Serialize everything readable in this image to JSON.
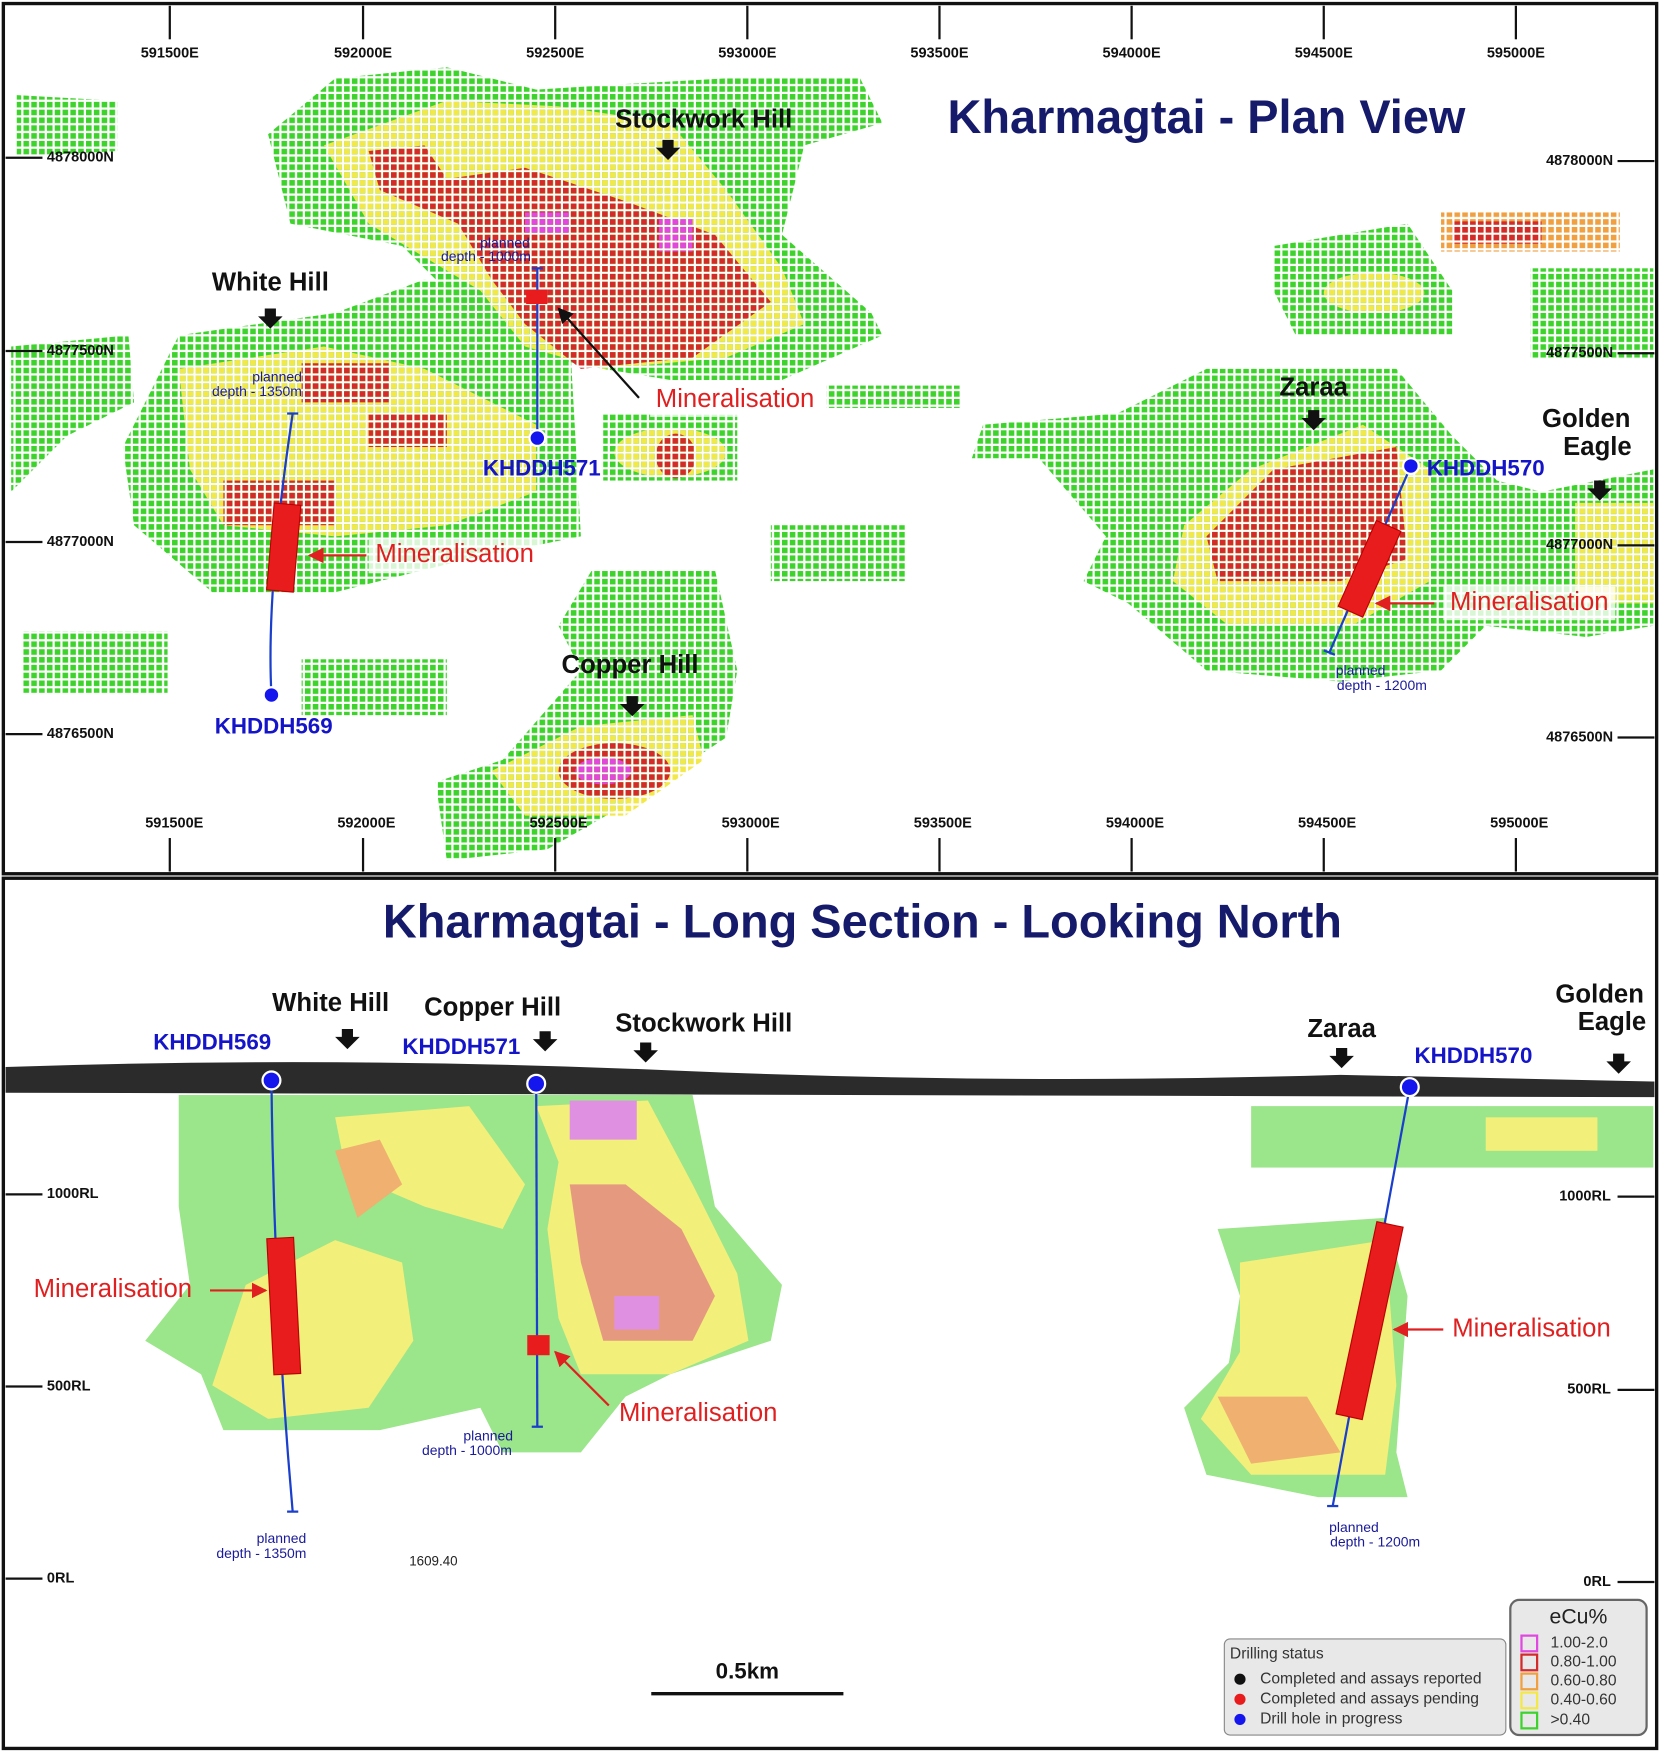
{
  "plan_view": {
    "title": "Kharmagtai - Plan View",
    "eastings_top": [
      "591500E",
      "592000E",
      "592500E",
      "593000E",
      "593500E",
      "594000E",
      "594500E",
      "595000E"
    ],
    "eastings_bottom": [
      "591500E",
      "592000E",
      "592500E",
      "593000E",
      "593500E",
      "594000E",
      "594500E",
      "595000E"
    ],
    "northings_left": [
      "4878000N",
      "4877500N",
      "4877000N",
      "4876500N"
    ],
    "northings_right": [
      "4878000N",
      "4877500N",
      "4877000N",
      "4876500N"
    ],
    "features": [
      "Stockwork Hill",
      "White Hill",
      "Copper Hill",
      "Zaraa"
    ],
    "golden_eagle": [
      "Golden",
      "Eagle"
    ],
    "drill_holes": [
      {
        "id": "KHDDH569",
        "planned": [
          "planned",
          "depth - 1350m"
        ]
      },
      {
        "id": "KHDDH571",
        "planned": [
          "planned",
          "depth - 1000m"
        ]
      },
      {
        "id": "KHDDH570",
        "planned": [
          "planned",
          "depth - 1200m"
        ]
      }
    ],
    "mineralisation_labels": [
      "Mineralisation",
      "Mineralisation",
      "Mineralisation"
    ]
  },
  "long_section": {
    "title": "Kharmagtai - Long Section - Looking North",
    "rl_left": [
      "1000RL",
      "500RL",
      "0RL"
    ],
    "rl_right": [
      "1000RL",
      "500RL",
      "0RL"
    ],
    "features": [
      "White Hill",
      "Copper Hill",
      "Stockwork Hill",
      "Zaraa"
    ],
    "golden_eagle": [
      "Golden",
      "Eagle"
    ],
    "drill_holes": [
      {
        "id": "KHDDH569",
        "planned": [
          "planned",
          "depth - 1350m"
        ]
      },
      {
        "id": "KHDDH571",
        "planned": [
          "planned",
          "depth - 1000m"
        ]
      },
      {
        "id": "KHDDH570",
        "planned": [
          "planned",
          "depth - 1200m"
        ]
      }
    ],
    "mineralisation_labels": [
      "Mineralisation",
      "Mineralisation",
      "Mineralisation"
    ],
    "note": "1609.40",
    "scale_bar": "0.5km"
  },
  "legend": {
    "drilling_status": {
      "title": "Drilling status",
      "items": [
        "Completed and assays reported",
        "Completed and assays pending",
        "Drill hole in progress"
      ]
    },
    "ecu": {
      "title": "eCu%",
      "items": [
        "1.00-2.0",
        "0.80-1.00",
        "0.60-0.80",
        "0.40-0.60",
        ">0.40"
      ]
    }
  }
}
